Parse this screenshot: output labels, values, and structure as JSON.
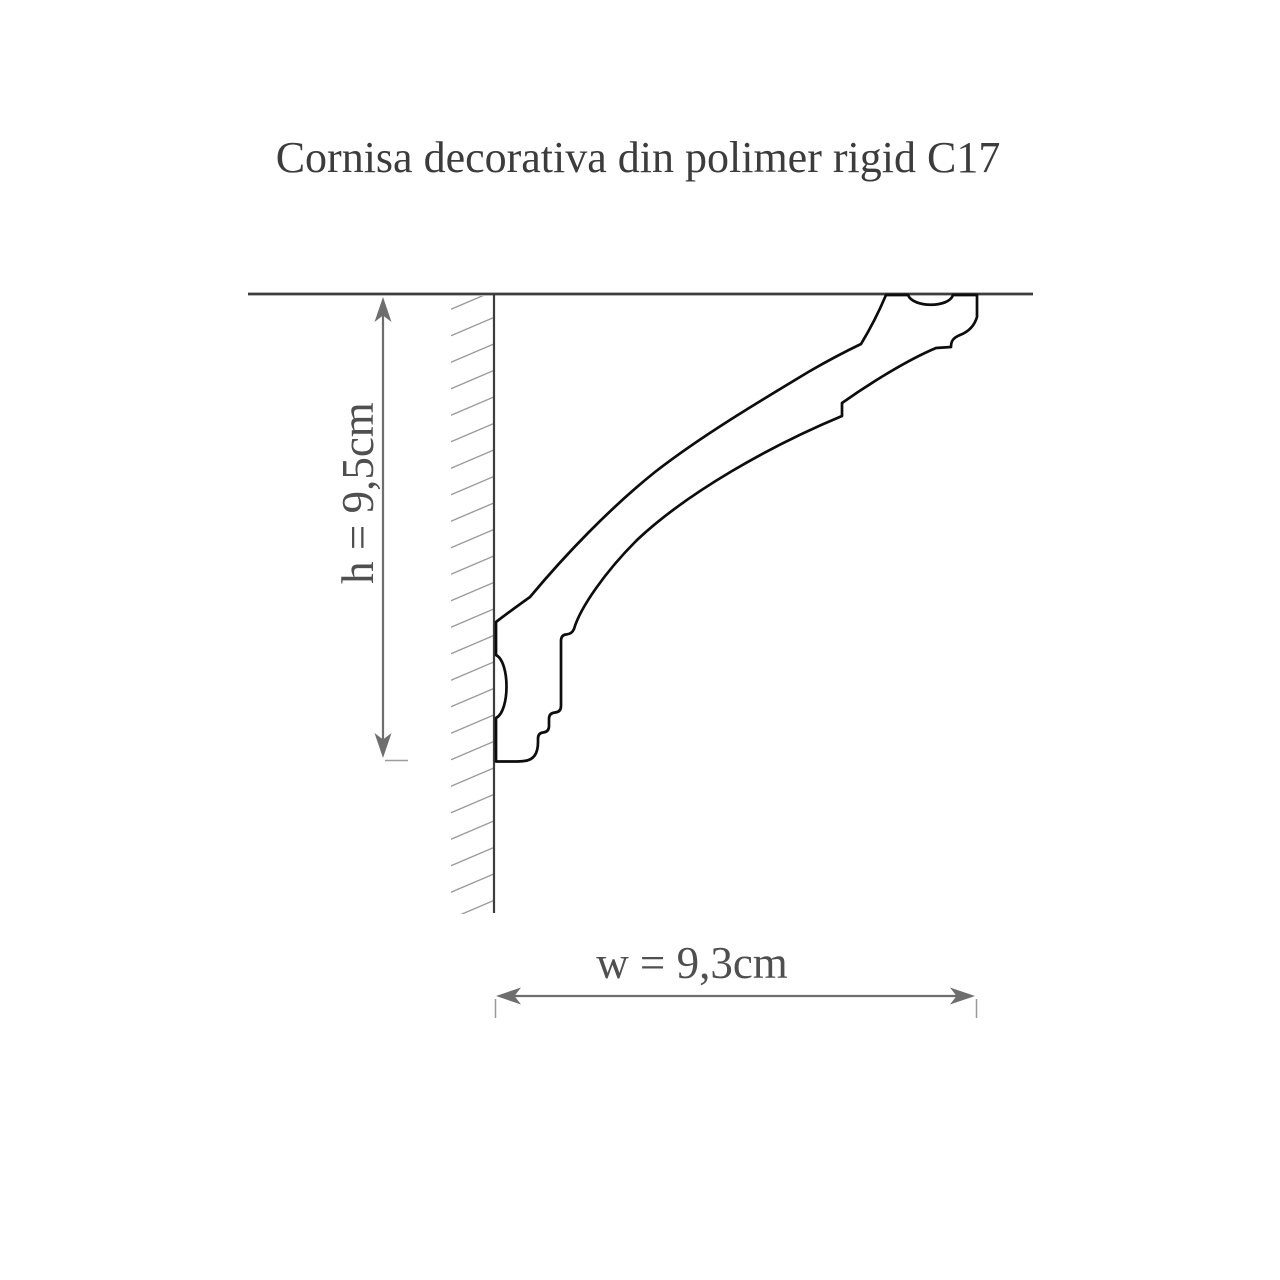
{
  "title": "Cornisa decorativa din polimer rigid C17",
  "product": {
    "code": "C17",
    "type": "decorative cornice profile cross-section"
  },
  "dimensions": {
    "height": {
      "label": "h = 9,5cm",
      "value_cm": 9.5
    },
    "width": {
      "label": "w = 9,3cm",
      "value_cm": 9.3
    }
  },
  "colors": {
    "background": "#ffffff",
    "profile_outline": "#0d0d0d",
    "structure_line": "#3d3d3d",
    "hatch_line": "#9b9b9b",
    "extension_line": "#9a9a9a",
    "dimension_line": "#6e6e6e",
    "dimension_text": "#4f4f4f",
    "title_text": "#3c3c3c"
  }
}
